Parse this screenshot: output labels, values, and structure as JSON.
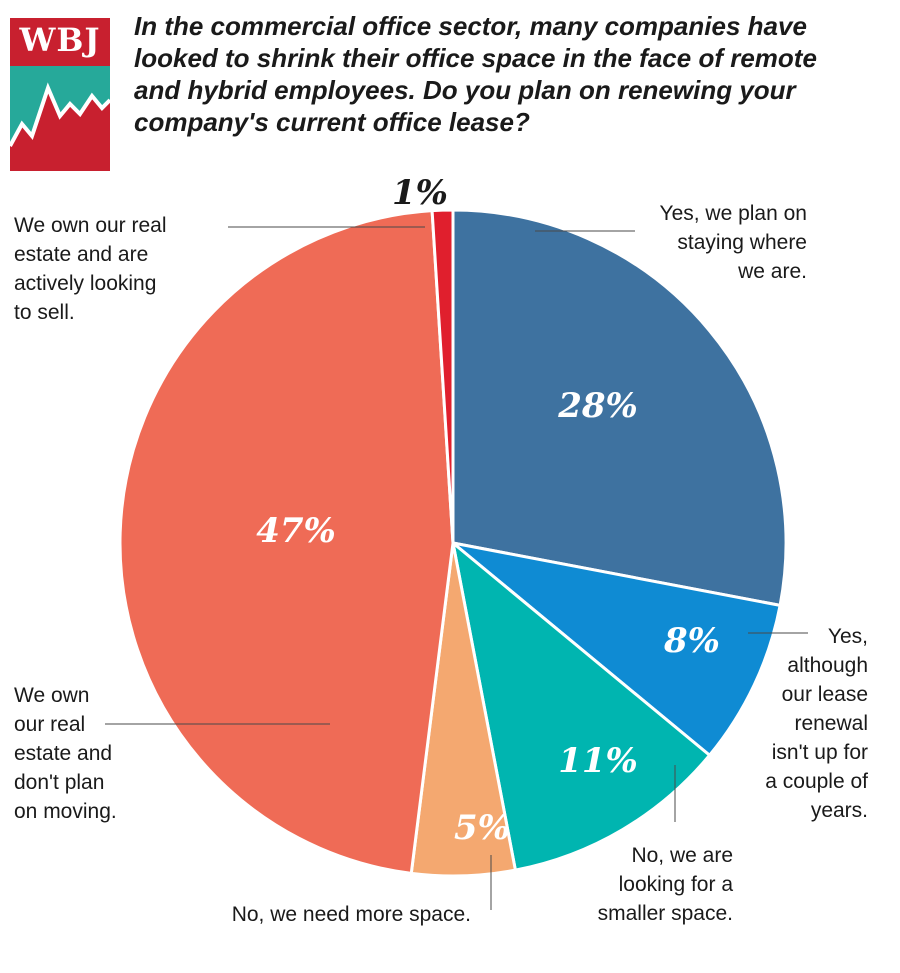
{
  "logo": {
    "text": "WBJ",
    "colors": {
      "top": "#c8202f",
      "band": "#26a99a",
      "bottom": "#c8202f"
    }
  },
  "question": "In the commercial office sector, many companies have looked to shrink their office space in the face of remote and hybrid employees. Do you plan on renewing your company's current office lease?",
  "chart_data": {
    "type": "pie",
    "title": "",
    "start": "12 o'clock, clockwise",
    "slices": [
      {
        "label": "Yes, we plan on staying where we are.",
        "lines": [
          "Yes, we plan on",
          "staying where",
          "we are."
        ],
        "value": 28,
        "display": "28%",
        "color": "#3e72a0"
      },
      {
        "label": "Yes, although our lease renewal isn't up for a couple of years.",
        "lines": [
          "Yes,",
          "although",
          "our lease",
          "renewal",
          "isn't up for",
          "a couple of",
          "years."
        ],
        "value": 8,
        "display": "8%",
        "color": "#0f8bd3"
      },
      {
        "label": "No, we are looking for a smaller space.",
        "lines": [
          "No, we are",
          "looking for a",
          "smaller space."
        ],
        "value": 11,
        "display": "11%",
        "color": "#00b5b0"
      },
      {
        "label": "No, we need more space.",
        "lines": [
          "No, we need more space."
        ],
        "value": 5,
        "display": "5%",
        "color": "#f4a870"
      },
      {
        "label": "We own our real estate and don't plan on moving.",
        "lines": [
          "We own",
          "our real",
          "estate and",
          "don't plan",
          "on moving."
        ],
        "value": 47,
        "display": "47%",
        "color": "#ef6b56"
      },
      {
        "label": "We own our real estate and are actively looking to sell.",
        "lines": [
          "We own our real",
          "estate and are",
          "actively looking",
          "to sell."
        ],
        "value": 1,
        "display": "1%",
        "color": "#e01f2d"
      }
    ]
  }
}
